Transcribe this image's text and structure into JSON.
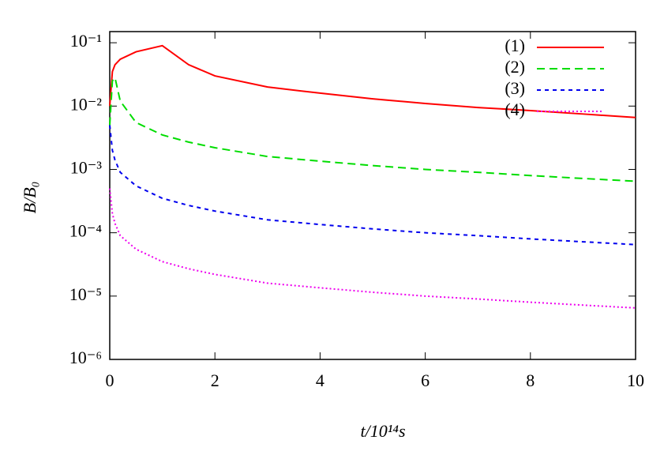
{
  "chart_data": {
    "type": "line",
    "log_y": true,
    "x_label": "t/10¹⁴s",
    "y_label": "B/B₀",
    "x": [
      0,
      0.05,
      0.1,
      0.2,
      0.5,
      1,
      1.5,
      2,
      3,
      4,
      5,
      6,
      7,
      8,
      9,
      10
    ],
    "series": [
      {
        "name": "(1)",
        "color": "#ff0000",
        "dash": "solid",
        "values": [
          0.01,
          0.035,
          0.045,
          0.055,
          0.072,
          0.09,
          0.045,
          0.03,
          0.02,
          0.016,
          0.013,
          0.011,
          0.0095,
          0.0085,
          0.0075,
          0.0066
        ]
      },
      {
        "name": "(2)",
        "color": "#00dd00",
        "dash": "dashed",
        "values": [
          0.005,
          0.025,
          0.028,
          0.012,
          0.0055,
          0.0035,
          0.0027,
          0.0022,
          0.0016,
          0.00135,
          0.00115,
          0.001,
          0.0009,
          0.0008,
          0.00072,
          0.00065
        ]
      },
      {
        "name": "(3)",
        "color": "#0000ee",
        "dash": "short-dashed",
        "values": [
          0.005,
          0.002,
          0.0014,
          0.0009,
          0.00055,
          0.00035,
          0.00027,
          0.00022,
          0.00016,
          0.000135,
          0.000115,
          0.0001,
          9e-05,
          8e-05,
          7.2e-05,
          6.5e-05
        ]
      },
      {
        "name": "(4)",
        "color": "#ee00ee",
        "dash": "dotted",
        "values": [
          0.0005,
          0.0002,
          0.00014,
          9e-05,
          5.5e-05,
          3.5e-05,
          2.7e-05,
          2.2e-05,
          1.6e-05,
          1.35e-05,
          1.15e-05,
          1e-05,
          9e-06,
          8e-06,
          7.2e-06,
          6.5e-06
        ]
      }
    ],
    "xlim": [
      0,
      10
    ],
    "xticks": [
      0,
      2,
      4,
      6,
      8,
      10
    ],
    "ylim": [
      1e-06,
      0.15
    ],
    "yticks": [
      {
        "value": 1e-06,
        "label": "10⁻⁶"
      },
      {
        "value": 1e-05,
        "label": "10⁻⁵"
      },
      {
        "value": 0.0001,
        "label": "10⁻⁴"
      },
      {
        "value": 0.001,
        "label": "10⁻³"
      },
      {
        "value": 0.01,
        "label": "10⁻²"
      },
      {
        "value": 0.1,
        "label": "10⁻¹"
      }
    ],
    "legend": "top-right"
  }
}
